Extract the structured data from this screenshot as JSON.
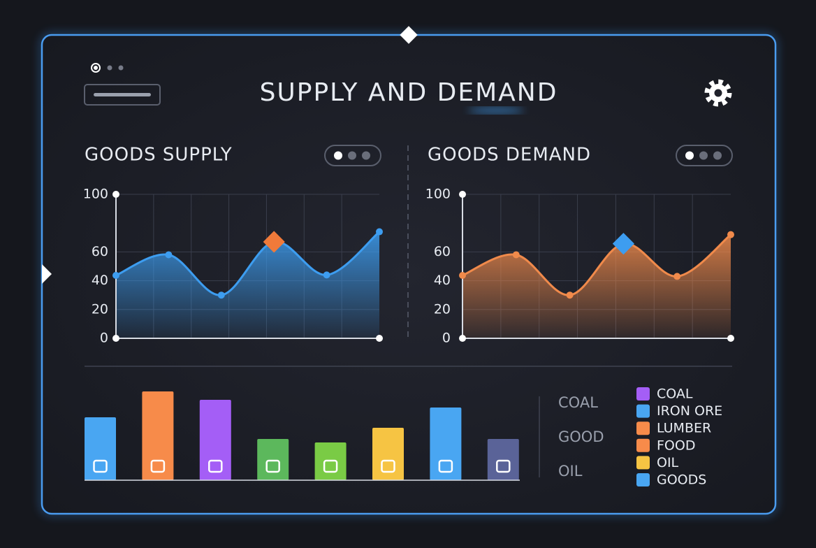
{
  "title": "SUPPLY AND DEMAND",
  "chart_data": [
    {
      "type": "area",
      "title": "GOODS SUPPLY",
      "values": [
        43.7,
        58,
        30,
        67,
        44,
        74
      ],
      "color": "#3d9df0",
      "highlight_color": "#f07a3a",
      "highlight_index": 3,
      "ylim": [
        0,
        100
      ],
      "yticks": [
        0,
        20,
        40,
        60,
        100
      ],
      "grid": true
    },
    {
      "type": "area",
      "title": "GOODS DEMAND",
      "values": [
        43.7,
        58,
        30,
        65.7,
        43,
        72
      ],
      "color": "#f08a4b",
      "highlight_color": "#3d9df0",
      "highlight_index": 3,
      "ylim": [
        0,
        100
      ],
      "yticks": [
        0,
        20,
        40,
        60,
        100
      ],
      "grid": true
    },
    {
      "type": "bar",
      "values": [
        90,
        127,
        115,
        59,
        54,
        75,
        104,
        59
      ],
      "colors": [
        "#49a6f2",
        "#f78b4a",
        "#a45ef6",
        "#5cb85c",
        "#7acb45",
        "#f6c443",
        "#49a6f2",
        "#5a6398"
      ],
      "ylim": [
        0,
        140
      ]
    }
  ],
  "side_labels": [
    "COAL",
    "GOOD",
    "OIL"
  ],
  "legend": [
    {
      "name": "COAL",
      "color": "#a45ef6"
    },
    {
      "name": "IRON ORE",
      "color": "#49a6f2"
    },
    {
      "name": "LUMBER",
      "color": "#f78b4a"
    },
    {
      "name": "FOOD",
      "color": "#f78b4a"
    },
    {
      "name": "OIL",
      "color": "#f6c443"
    },
    {
      "name": "GOODS",
      "color": "#49a6f2"
    }
  ]
}
